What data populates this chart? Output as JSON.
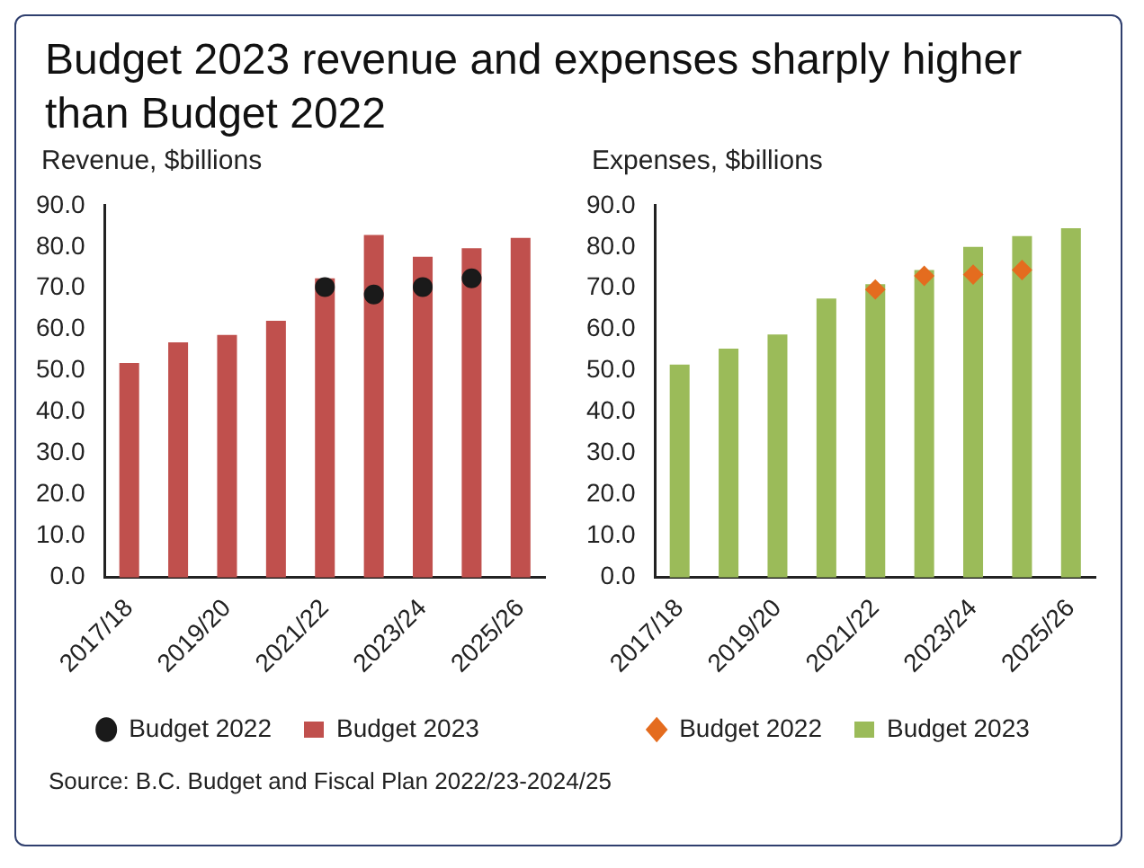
{
  "chart_data": [
    {
      "type": "bar",
      "title": "Budget 2023 revenue and expenses sharply higher than Budget 2022",
      "ylabel": "Revenue, $billions",
      "categories": [
        "2017/18",
        null,
        "2019/20",
        null,
        "2021/22",
        null,
        "2023/24",
        null,
        "2025/26"
      ],
      "series": [
        {
          "name": "Budget 2023",
          "color": "#c0504d",
          "values": [
            51.9,
            56.9,
            58.7,
            62.1,
            72.4,
            82.9,
            77.6,
            79.7,
            82.2
          ]
        },
        {
          "name": "Budget 2022",
          "type": "scatter",
          "marker": "circle",
          "color": "#1a1a1a",
          "values": [
            null,
            null,
            null,
            null,
            70.3,
            68.5,
            70.3,
            72.4,
            null
          ]
        }
      ],
      "ylim": [
        0,
        90
      ],
      "yticks": [
        {
          "value": 0,
          "label": "0.0"
        },
        {
          "value": 10,
          "label": "10.0"
        },
        {
          "value": 20,
          "label": "20.0"
        },
        {
          "value": 30,
          "label": "30.0"
        },
        {
          "value": 40,
          "label": "40.0"
        },
        {
          "value": 50,
          "label": "50.0"
        },
        {
          "value": 60,
          "label": "60.0"
        },
        {
          "value": 70,
          "label": "70.0"
        },
        {
          "value": 80,
          "label": "80.0"
        },
        {
          "value": 90,
          "label": "90.0"
        }
      ],
      "grid": false,
      "legend": "bottom",
      "annotations": [
        "Source:  B.C. Budget and Fiscal Plan 2022/23-2024/25"
      ]
    },
    {
      "type": "bar",
      "ylabel": "Expenses, $billions",
      "categories": [
        "2017/18",
        null,
        "2019/20",
        null,
        "2021/22",
        null,
        "2023/24",
        null,
        "2025/26"
      ],
      "series": [
        {
          "name": "Budget 2023",
          "color": "#9bbb59",
          "values": [
            51.5,
            55.4,
            58.8,
            67.5,
            71.0,
            74.4,
            80.0,
            82.6,
            84.5
          ]
        },
        {
          "name": "Budget 2022",
          "type": "scatter",
          "marker": "diamond",
          "color": "#e46c1f",
          "values": [
            null,
            null,
            null,
            null,
            69.7,
            73.0,
            73.3,
            74.4,
            null
          ]
        }
      ],
      "ylim": [
        0,
        90
      ],
      "yticks": [
        {
          "value": 0,
          "label": "0.0"
        },
        {
          "value": 10,
          "label": "10.0"
        },
        {
          "value": 20,
          "label": "20.0"
        },
        {
          "value": 30,
          "label": "30.0"
        },
        {
          "value": 40,
          "label": "40.0"
        },
        {
          "value": 50,
          "label": "50.0"
        },
        {
          "value": 60,
          "label": "60.0"
        },
        {
          "value": 70,
          "label": "70.0"
        },
        {
          "value": 80,
          "label": "80.0"
        },
        {
          "value": 90,
          "label": "90.0"
        }
      ],
      "grid": false,
      "legend": "bottom"
    }
  ]
}
